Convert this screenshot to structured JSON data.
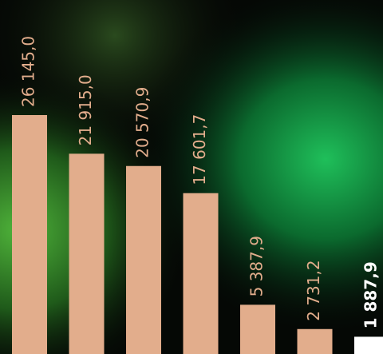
{
  "chart_data": {
    "type": "bar",
    "values": [
      26145.0,
      21915.0,
      20570.9,
      17601.7,
      5387.9,
      2731.2,
      1887.9
    ],
    "value_labels": [
      "26 145,0",
      "21 915,0",
      "20 570,9",
      "17 601,7",
      "5 387,9",
      "2 731,2",
      "1 887,9"
    ],
    "colors": [
      "#e2ad8c",
      "#e2ad8c",
      "#e2ad8c",
      "#e2ad8c",
      "#e2ad8c",
      "#e2ad8c",
      "#ffffff"
    ],
    "bold_labels": [
      false,
      false,
      false,
      false,
      false,
      false,
      true
    ]
  }
}
